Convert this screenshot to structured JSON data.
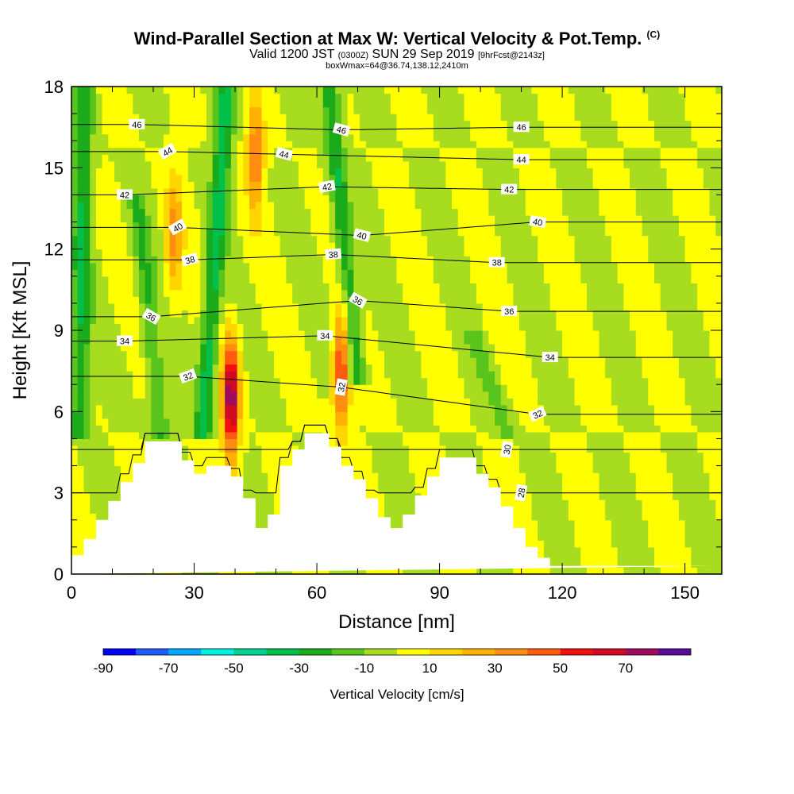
{
  "header": {
    "title": "Wind-Parallel Section at Max W: Vertical Velocity & Pot.Temp.",
    "copyright": "(C)",
    "valid_prefix": "Valid 1200 JST",
    "valid_utc": "(0300Z)",
    "valid_date": "SUN 29 Sep 2019",
    "forecast": "[9hrFcst@2143z]",
    "box_info": "boxWmax=64@36.74,138.12,2410m"
  },
  "colors": {
    "palette": [
      "#0000ff",
      "#1e5cff",
      "#00a8ff",
      "#00f0e0",
      "#00d090",
      "#00c04a",
      "#1aaa1a",
      "#58c41c",
      "#a8dc1e",
      "#ffff00",
      "#ffd600",
      "#ffb100",
      "#ff8d10",
      "#ff5a10",
      "#f01010",
      "#d00a22",
      "#a00a5c",
      "#5a0a94"
    ],
    "terrain": "#ffffff",
    "contour": "#000000"
  },
  "chart_data": {
    "type": "heatmap",
    "title": "Wind-Parallel Section at Max W: Vertical Velocity & Pot.Temp.",
    "xlabel": "Distance [nm]",
    "ylabel": "Height [Kft MSL]",
    "xlim": [
      0,
      159
    ],
    "ylim": [
      0,
      18
    ],
    "xticks": [
      0,
      30,
      60,
      90,
      120,
      150
    ],
    "yticks": [
      0,
      3,
      6,
      9,
      12,
      15,
      18
    ],
    "colorbar": {
      "label": "Vertical Velocity [cm/s]",
      "ticks": [
        -90,
        -70,
        -50,
        -30,
        -10,
        10,
        30,
        50,
        70
      ],
      "min": -90,
      "max": 80,
      "step": 10
    },
    "theta_contour_labels": [
      {
        "v": "46",
        "x": 16,
        "y": 16.6,
        "rot": 0
      },
      {
        "v": "46",
        "x": 66,
        "y": 16.4,
        "rot": 15
      },
      {
        "v": "46",
        "x": 110,
        "y": 16.5,
        "rot": 0
      },
      {
        "v": "44",
        "x": 23.5,
        "y": 15.6,
        "rot": -30
      },
      {
        "v": "44",
        "x": 52,
        "y": 15.5,
        "rot": 15
      },
      {
        "v": "44",
        "x": 110,
        "y": 15.3,
        "rot": 0
      },
      {
        "v": "42",
        "x": 13,
        "y": 14.0,
        "rot": 0
      },
      {
        "v": "42",
        "x": 62.5,
        "y": 14.3,
        "rot": -10
      },
      {
        "v": "42",
        "x": 107,
        "y": 14.2,
        "rot": 0
      },
      {
        "v": "40",
        "x": 26,
        "y": 12.8,
        "rot": -30
      },
      {
        "v": "40",
        "x": 71,
        "y": 12.5,
        "rot": 15
      },
      {
        "v": "40",
        "x": 114,
        "y": 13.0,
        "rot": 10
      },
      {
        "v": "38",
        "x": 29,
        "y": 11.6,
        "rot": -15
      },
      {
        "v": "38",
        "x": 64,
        "y": 11.8,
        "rot": -5
      },
      {
        "v": "38",
        "x": 104,
        "y": 11.5,
        "rot": 0
      },
      {
        "v": "36",
        "x": 19.5,
        "y": 9.5,
        "rot": 30
      },
      {
        "v": "36",
        "x": 70,
        "y": 10.1,
        "rot": 30
      },
      {
        "v": "36",
        "x": 107,
        "y": 9.7,
        "rot": 0
      },
      {
        "v": "34",
        "x": 13,
        "y": 8.6,
        "rot": 0
      },
      {
        "v": "34",
        "x": 62,
        "y": 8.8,
        "rot": 0
      },
      {
        "v": "34",
        "x": 117,
        "y": 8.0,
        "rot": 0
      },
      {
        "v": "32",
        "x": 28.5,
        "y": 7.3,
        "rot": -20
      },
      {
        "v": "32",
        "x": 66,
        "y": 6.9,
        "rot": -80
      },
      {
        "v": "32",
        "x": 114,
        "y": 5.9,
        "rot": -25
      },
      {
        "v": "30",
        "x": 106.5,
        "y": 4.6,
        "rot": -80
      },
      {
        "v": "28",
        "x": 110,
        "y": 3.0,
        "rot": -80
      }
    ],
    "terrain": {
      "x": [
        0,
        3,
        3,
        6,
        6,
        9,
        9,
        12,
        12,
        15,
        15,
        18,
        18,
        21,
        21,
        24,
        24,
        27,
        27,
        30,
        30,
        33,
        33,
        36,
        36,
        39,
        39,
        42,
        42,
        45,
        45,
        48,
        48,
        51,
        51,
        54,
        54,
        57,
        57,
        60,
        60,
        63,
        63,
        66,
        66,
        69,
        69,
        72,
        72,
        75,
        75,
        78,
        78,
        81,
        81,
        84,
        84,
        87,
        87,
        90,
        90,
        93,
        93,
        96,
        96,
        99,
        99,
        102,
        102,
        105,
        105,
        108,
        108,
        111,
        111,
        114,
        114,
        117,
        117,
        120,
        120,
        123,
        123,
        126,
        126,
        129,
        129,
        132,
        132,
        135,
        135,
        138,
        138,
        141,
        141,
        144,
        144,
        147,
        147,
        150,
        150,
        153,
        153,
        156,
        156,
        159
      ],
      "y": [
        0.7,
        0.7,
        1.3,
        1.3,
        2.0,
        2.0,
        2.7,
        2.7,
        3.4,
        3.4,
        4.1,
        4.1,
        4.9,
        4.9,
        4.9,
        4.9,
        4.9,
        4.9,
        4.2,
        4.2,
        3.7,
        3.7,
        4.0,
        4.0,
        4.0,
        4.0,
        3.6,
        3.6,
        2.8,
        2.8,
        1.7,
        1.7,
        2.2,
        2.2,
        4.0,
        4.0,
        4.6,
        4.6,
        5.2,
        5.2,
        5.2,
        5.2,
        4.7,
        4.7,
        4.0,
        4.0,
        3.5,
        3.5,
        2.8,
        2.8,
        2.1,
        2.1,
        1.7,
        1.7,
        2.2,
        2.2,
        2.9,
        2.9,
        3.6,
        3.6,
        4.3,
        4.3,
        4.3,
        4.3,
        4.3,
        4.3,
        3.7,
        3.7,
        3.2,
        3.2,
        2.5,
        2.5,
        1.7,
        1.7,
        1.0,
        1.0,
        0.6,
        0.6,
        0.3,
        0.3,
        0.3,
        0.3,
        0.3,
        0.3,
        0.3,
        0.3,
        0.3,
        0.3,
        0.3,
        0.3,
        0.3,
        0.3,
        0.3,
        0.3,
        0.3,
        0.3,
        0.3,
        0.3,
        0.3,
        0.3,
        0.3,
        0.3,
        0.3,
        0.3,
        0.3
      ]
    },
    "updraft_cores": [
      {
        "x": 39,
        "y": 6.5,
        "max": 80
      },
      {
        "x": 66,
        "y": 7.5,
        "max": 55
      },
      {
        "x": 45,
        "y": 15.5,
        "max": 40
      },
      {
        "x": 25,
        "y": 12.5,
        "max": 35
      }
    ],
    "downdraft_bands": [
      {
        "x_from": 2,
        "x_to": 3,
        "y_from": 5,
        "y_to": 18,
        "min": -30
      },
      {
        "x_from": 22,
        "x_to": 16,
        "y_from": 5,
        "y_to": 14,
        "min": -20
      },
      {
        "x_from": 32,
        "x_to": 38,
        "y_from": 5,
        "y_to": 18,
        "min": -35
      },
      {
        "x_from": 70,
        "x_to": 63,
        "y_from": 7,
        "y_to": 18,
        "min": -30
      },
      {
        "x_from": 107,
        "x_to": 98,
        "y_from": 5,
        "y_to": 9,
        "min": -15
      }
    ]
  }
}
